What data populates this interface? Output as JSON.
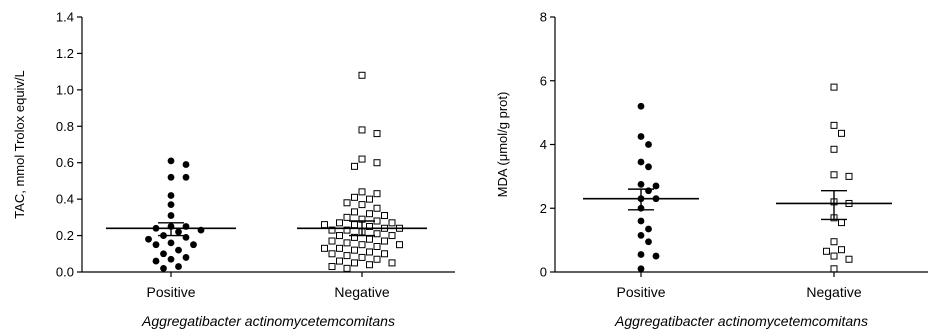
{
  "chart_data": [
    {
      "type": "scatter",
      "ylabel": "TAC, mmol Trolox equiv/L",
      "xlabel": "Aggregatibacter actinomycetemcomitans",
      "categories": [
        "Positive",
        "Negative"
      ],
      "ylim": [
        0,
        1.4
      ],
      "yticks": [
        "0.0",
        "0.2",
        "0.4",
        "0.6",
        "0.8",
        "1.0",
        "1.2",
        "1.4"
      ],
      "series": [
        {
          "marker": "filled-circle",
          "mean": 0.24,
          "sem_low": 0.2,
          "sem_high": 0.27,
          "values": [
            0.61,
            0.59,
            0.52,
            0.52,
            0.42,
            0.37,
            0.31,
            0.25,
            0.25,
            0.24,
            0.23,
            0.22,
            0.2,
            0.19,
            0.18,
            0.16,
            0.15,
            0.15,
            0.12,
            0.1,
            0.08,
            0.07,
            0.06,
            0.03,
            0.02
          ]
        },
        {
          "marker": "open-square",
          "mean": 0.24,
          "sem_low": 0.2,
          "sem_high": 0.28,
          "values": [
            1.08,
            0.78,
            0.76,
            0.62,
            0.6,
            0.58,
            0.44,
            0.43,
            0.41,
            0.4,
            0.38,
            0.37,
            0.35,
            0.33,
            0.32,
            0.31,
            0.3,
            0.29,
            0.28,
            0.27,
            0.27,
            0.26,
            0.26,
            0.25,
            0.24,
            0.24,
            0.23,
            0.23,
            0.22,
            0.21,
            0.2,
            0.2,
            0.19,
            0.18,
            0.17,
            0.17,
            0.16,
            0.15,
            0.15,
            0.14,
            0.13,
            0.13,
            0.12,
            0.11,
            0.1,
            0.1,
            0.09,
            0.08,
            0.07,
            0.06,
            0.05,
            0.05,
            0.04,
            0.03,
            0.02
          ]
        }
      ]
    },
    {
      "type": "scatter",
      "ylabel": "MDA (μmol/g prot)",
      "xlabel": "Aggregatibacter actinomycetemcomitans",
      "categories": [
        "Positive",
        "Negative"
      ],
      "ylim": [
        0,
        8
      ],
      "yticks": [
        "0",
        "2",
        "4",
        "6",
        "8"
      ],
      "series": [
        {
          "marker": "filled-circle",
          "mean": 2.3,
          "sem_low": 1.95,
          "sem_high": 2.6,
          "values": [
            5.2,
            4.25,
            4.0,
            3.45,
            3.3,
            2.75,
            2.7,
            2.55,
            2.3,
            2.3,
            2.0,
            1.6,
            1.35,
            1.15,
            0.95,
            0.55,
            0.5,
            0.1
          ]
        },
        {
          "marker": "open-square",
          "mean": 2.15,
          "sem_low": 1.65,
          "sem_high": 2.55,
          "values": [
            5.8,
            4.6,
            4.35,
            3.85,
            3.05,
            3.0,
            2.2,
            2.15,
            1.7,
            1.55,
            0.95,
            0.7,
            0.65,
            0.5,
            0.4,
            0.1
          ]
        }
      ]
    }
  ]
}
